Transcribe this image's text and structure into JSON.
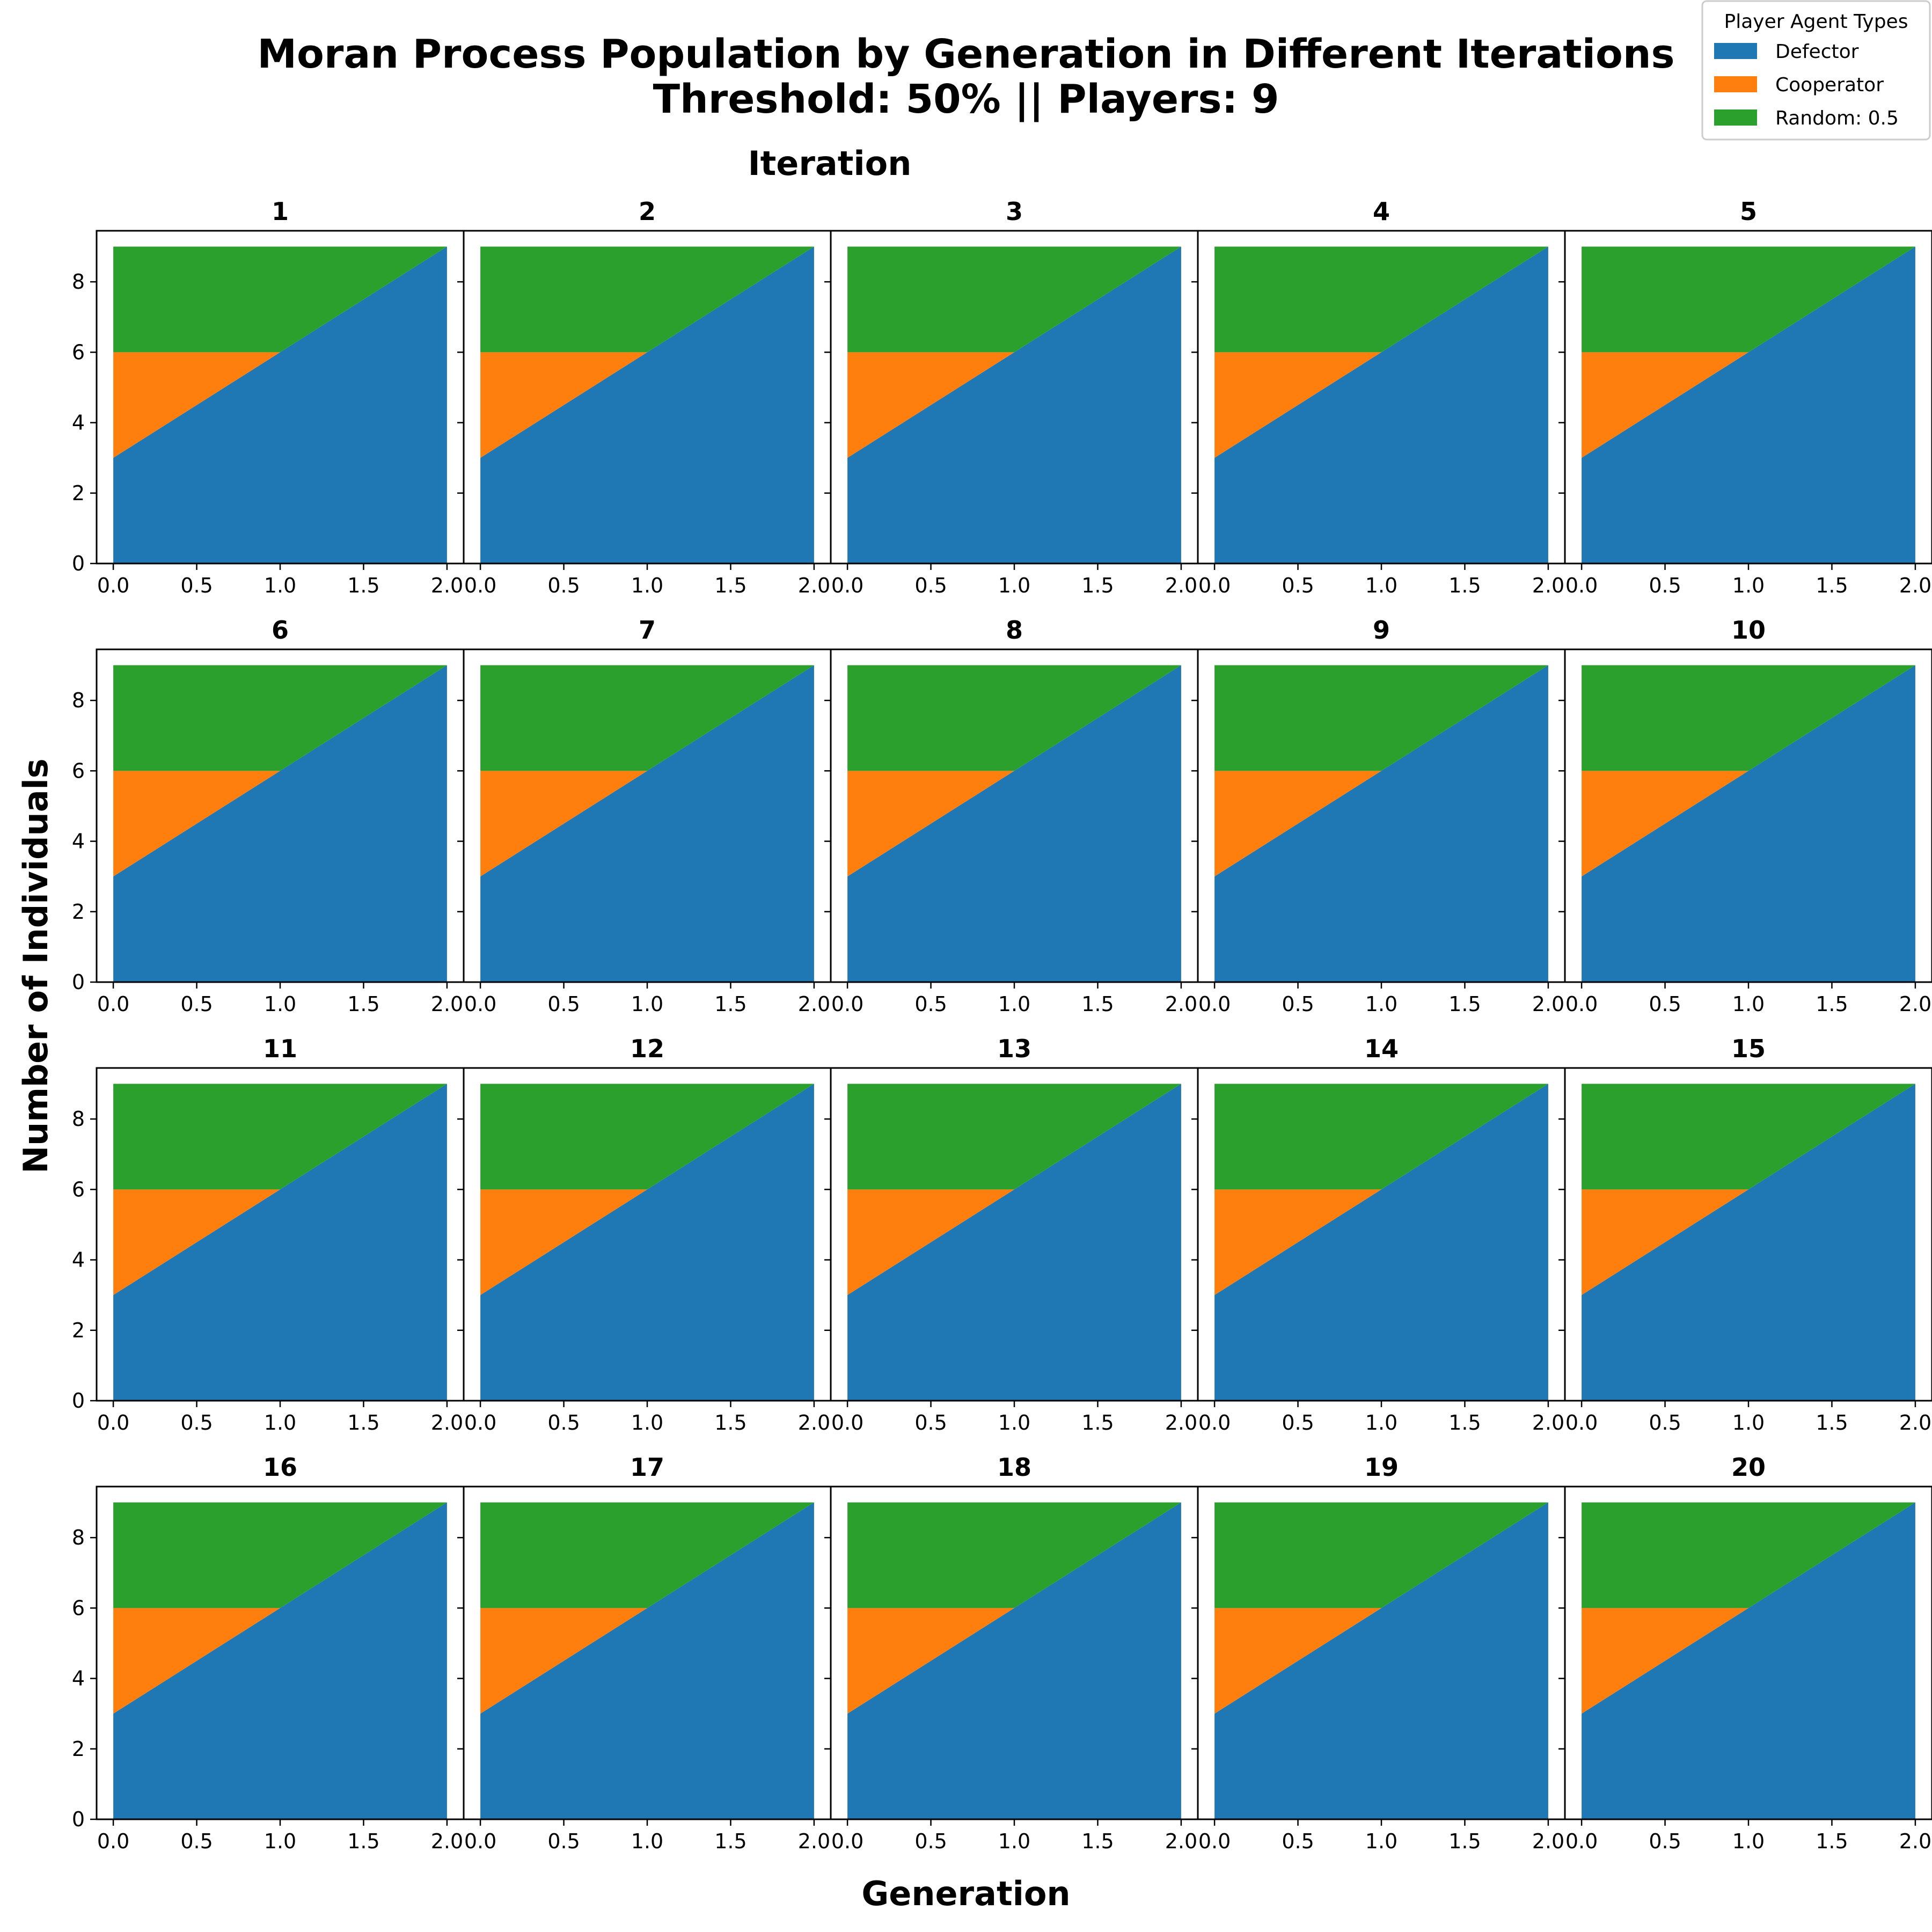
{
  "chart_data": {
    "type": "area",
    "stacked": true,
    "title": "Moran Process Population by Generation in Different Iterations",
    "subtitle": "Threshold: 50% || Players: 9",
    "column_header": "Iteration",
    "xlabel": "Generation",
    "ylabel": "Number of Individuals",
    "x": [
      0,
      1,
      2
    ],
    "xlim": [
      0,
      2
    ],
    "ylim": [
      0,
      9
    ],
    "x_ticks": [
      "0.0",
      "0.5",
      "1.0",
      "1.5",
      "2.0"
    ],
    "y_ticks": [
      "0",
      "2",
      "4",
      "6",
      "8"
    ],
    "grid": false,
    "legend": {
      "title": "Player Agent Types",
      "placement": "top-right",
      "entries": [
        "Defector",
        "Cooperator",
        "Random: 0.5"
      ]
    },
    "series_template": [
      {
        "name": "Defector",
        "color": "#1f77b4",
        "values": [
          3,
          6,
          9
        ]
      },
      {
        "name": "Cooperator",
        "color": "#ff7f0e",
        "values": [
          3,
          0,
          0
        ]
      },
      {
        "name": "Random: 0.5",
        "color": "#2ca02c",
        "values": [
          3,
          3,
          0
        ]
      }
    ],
    "panels": [
      {
        "label": "1"
      },
      {
        "label": "2"
      },
      {
        "label": "3"
      },
      {
        "label": "4"
      },
      {
        "label": "5"
      },
      {
        "label": "6"
      },
      {
        "label": "7"
      },
      {
        "label": "8"
      },
      {
        "label": "9"
      },
      {
        "label": "10"
      },
      {
        "label": "11"
      },
      {
        "label": "12"
      },
      {
        "label": "13"
      },
      {
        "label": "14"
      },
      {
        "label": "15"
      },
      {
        "label": "16"
      },
      {
        "label": "17"
      },
      {
        "label": "18"
      },
      {
        "label": "19"
      },
      {
        "label": "20"
      }
    ]
  }
}
